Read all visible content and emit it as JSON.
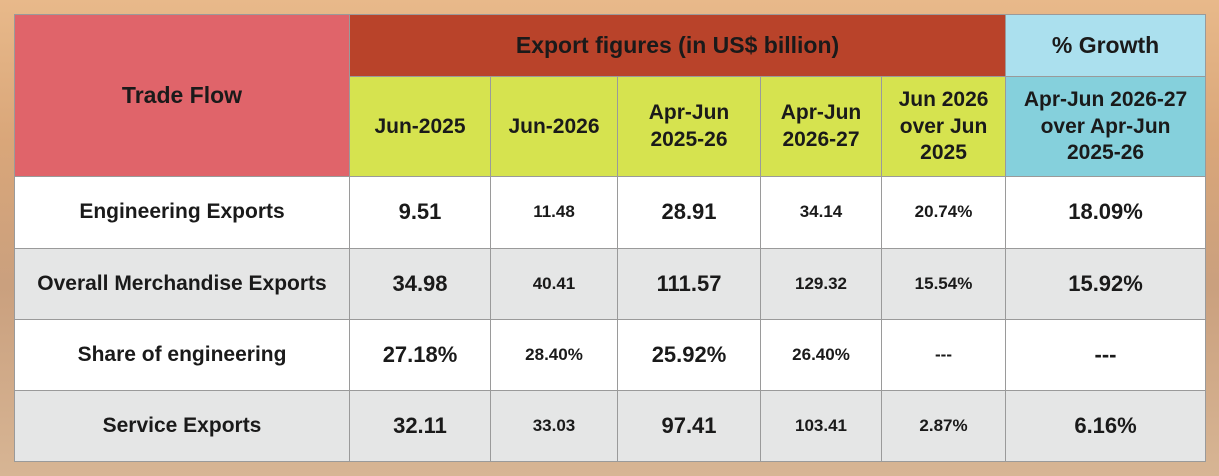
{
  "header": {
    "trade_flow": "Trade Flow",
    "export_figures": "Export figures (in US$ billion)",
    "growth": "% Growth",
    "columns": [
      "Jun-2025",
      "Jun-2026",
      "Apr-Jun 2025-26",
      "Apr-Jun 2026-27",
      "Jun 2026 over Jun 2025",
      "Apr-Jun 2026-27 over Apr-Jun 2025-26"
    ]
  },
  "rows": [
    {
      "label": "Engineering Exports",
      "values": [
        "9.51",
        "11.48",
        "28.91",
        "34.14",
        "20.74%",
        "18.09%"
      ]
    },
    {
      "label": "Overall Merchandise Exports",
      "values": [
        "34.98",
        "40.41",
        "111.57",
        "129.32",
        "15.54%",
        "15.92%"
      ]
    },
    {
      "label": "Share of engineering",
      "values": [
        "27.18%",
        "28.40%",
        "25.92%",
        "26.40%",
        "---",
        "---"
      ]
    },
    {
      "label": "Service Exports",
      "values": [
        "32.11",
        "33.03",
        "97.41",
        "103.41",
        "2.87%",
        "6.16%"
      ]
    }
  ],
  "colors": {
    "trade_flow_header": "#e0646a",
    "export_header": "#b9432a",
    "growth_header": "#abe0ee",
    "subheader": "#d6e34f",
    "growth_subheader": "#85d0dc",
    "alt_row": "#e5e6e6"
  }
}
